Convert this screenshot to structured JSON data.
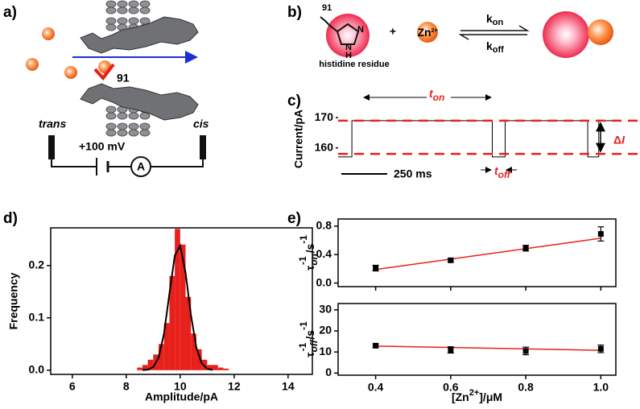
{
  "panel_labels": [
    "a)",
    "b)",
    "c)",
    "d)",
    "e)"
  ],
  "panel_a": {
    "residue": "91",
    "trans": "trans",
    "cis": "cis",
    "voltage": "+100 mV",
    "ammeter": "A"
  },
  "panel_b": {
    "residue": "91",
    "ring_n1": "N",
    "ring_n2": "N",
    "ring_h": "H",
    "residue_name": "histidine residue",
    "plus": "+",
    "ion": "Zn",
    "ion_charge": "2+",
    "k_on": {
      "k": "k",
      "sub": "on"
    },
    "k_off": {
      "k": "k",
      "sub": "off"
    }
  },
  "chart_data": [
    {
      "type": "trace",
      "ylabel": "Current/pA",
      "x": [
        0,
        75,
        75,
        840,
        840,
        910,
        910,
        1360,
        1360,
        1420,
        1420,
        1510
      ],
      "values": [
        157,
        157,
        169,
        169,
        157,
        157,
        169,
        169,
        157,
        157,
        169,
        169
      ],
      "color": "#000000",
      "xlim": [
        0,
        1510
      ],
      "ylim": [
        154.3,
        174.3
      ],
      "yticks": [
        160,
        170
      ],
      "levels": [
        169,
        158
      ],
      "level_color": "#e8201c",
      "scale_bar": {
        "length": 250,
        "label": "250 ms"
      },
      "t_on": {
        "t": "t",
        "sub": "on"
      },
      "t_off": {
        "t": "t",
        "sub": "off"
      },
      "delta_i": {
        "delta": "Δ",
        "i": "I"
      }
    },
    {
      "type": "histogram",
      "xlabel": "Amplitude/pA",
      "ylabel": "Frequency",
      "color": "#e8201c",
      "bins": [
        8.4,
        8.6,
        8.8,
        9.0,
        9.2,
        9.4,
        9.6,
        9.8,
        10.0,
        10.2,
        10.4,
        10.6,
        10.8,
        11.0,
        11.2,
        11.4,
        11.6,
        11.8
      ],
      "values": [
        0.005,
        0.01,
        0.02,
        0.03,
        0.05,
        0.09,
        0.18,
        0.27,
        0.24,
        0.14,
        0.07,
        0.04,
        0.02,
        0.01,
        0.01,
        0.005,
        0.003
      ],
      "fit": {
        "color": "#000000",
        "x": [
          8.6,
          8.8,
          9.0,
          9.2,
          9.4,
          9.6,
          9.8,
          10.0,
          10.2,
          10.4,
          10.6,
          10.8,
          11.0,
          11.2
        ],
        "values": [
          0.0003,
          0.001,
          0.006,
          0.024,
          0.07,
          0.146,
          0.219,
          0.238,
          0.186,
          0.105,
          0.043,
          0.013,
          0.003,
          0.0005
        ]
      },
      "xlim": [
        5.2,
        14.9
      ],
      "ylim": [
        -0.008,
        0.272
      ],
      "xticks": [
        6,
        8,
        10,
        12,
        14
      ],
      "yticks": [
        {
          "value": 0,
          "label": "0.0"
        },
        {
          "value": 0.1,
          "label": "0.1"
        },
        {
          "value": 0.2,
          "label": "0.2"
        }
      ]
    },
    {
      "type": "scatter",
      "ylabel": {
        "symbol": "τ",
        "sub": "on",
        "sup": "-1",
        "unit": "/s",
        "unit_sup": "-1"
      },
      "x": [
        0.4,
        0.6,
        0.8,
        1.0
      ],
      "series": [
        {
          "color": "#000000",
          "values": [
            0.21,
            0.32,
            0.49,
            0.69
          ],
          "errors": [
            0.04,
            0.02,
            0.04,
            0.1
          ]
        }
      ],
      "fit": {
        "color": "#e8201c",
        "x": [
          0.4,
          1.0
        ],
        "values": [
          0.19,
          0.63
        ]
      },
      "xlim": [
        0.3,
        1.04
      ],
      "ylim": [
        -0.05,
        0.9
      ],
      "xticks": [
        0.4,
        0.6,
        0.8,
        1
      ],
      "show_xtick_labels": false,
      "yticks": [
        {
          "value": 0,
          "label": "0.0"
        },
        0.4,
        0.8
      ]
    },
    {
      "type": "scatter",
      "ylabel": {
        "symbol": "τ",
        "sub": "off",
        "sup": "-1",
        "unit": "/s",
        "unit_sup": "-1"
      },
      "xlabel": {
        "pre": "[Zn",
        "sup": "2+",
        "post": "]/μM"
      },
      "x": [
        0.4,
        0.6,
        0.8,
        1.0
      ],
      "series": [
        {
          "color": "#000000",
          "values": [
            13,
            11,
            10.5,
            11.5
          ],
          "errors": [
            0.8,
            1.5,
            1.8,
            1.8
          ]
        }
      ],
      "fit": {
        "color": "#e8201c",
        "x": [
          0.4,
          1.0
        ],
        "values": [
          12.8,
          10.8
        ]
      },
      "xlim": [
        0.3,
        1.04
      ],
      "ylim": [
        -1,
        33
      ],
      "show_xtick_labels": true,
      "xticks": [
        0.4,
        0.6,
        0.8,
        {
          "value": 1,
          "label": "1.0"
        }
      ],
      "yticks": [
        0,
        10,
        20,
        30
      ]
    }
  ]
}
